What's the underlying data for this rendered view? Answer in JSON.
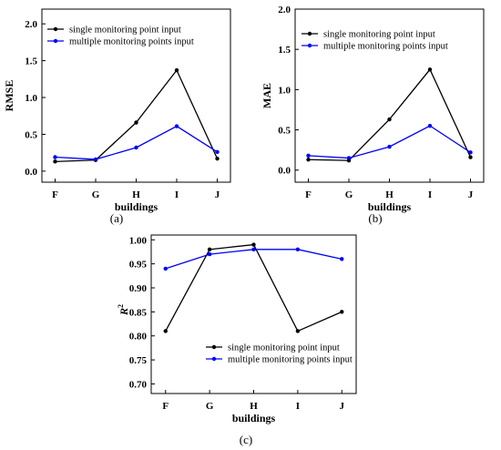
{
  "chart_data": [
    {
      "type": "line",
      "panel_label": "a",
      "categories": [
        "F",
        "G",
        "H",
        "I",
        "J"
      ],
      "xlabel": "buildings",
      "ylabel": "RMSE",
      "ylim": [
        -0.15,
        2.2
      ],
      "yticks": [
        0.0,
        0.5,
        1.0,
        1.5,
        2.0
      ],
      "ytick_labels": [
        "0.0",
        "0.5",
        "1.0",
        "1.5",
        "2.0"
      ],
      "legend_position": "top-left",
      "series": [
        {
          "name": "single monitoring point input",
          "color": "#000000",
          "values": [
            0.13,
            0.15,
            0.66,
            1.37,
            0.17
          ]
        },
        {
          "name": "multiple monitoring points input",
          "color": "#0000ff",
          "values": [
            0.19,
            0.16,
            0.32,
            0.61,
            0.26
          ]
        }
      ]
    },
    {
      "type": "line",
      "panel_label": "b",
      "categories": [
        "F",
        "G",
        "H",
        "I",
        "J"
      ],
      "xlabel": "buildings",
      "ylabel": "MAE",
      "ylim": [
        -0.15,
        2.0
      ],
      "yticks": [
        0.0,
        0.5,
        1.0,
        1.5,
        2.0
      ],
      "ytick_labels": [
        "0.0",
        "0.5",
        "1.0",
        "1.5",
        "2.0"
      ],
      "legend_position": "top-left",
      "series": [
        {
          "name": "single monitoring point input",
          "color": "#000000",
          "values": [
            0.13,
            0.12,
            0.63,
            1.25,
            0.16
          ]
        },
        {
          "name": "multiple monitoring points input",
          "color": "#0000ff",
          "values": [
            0.18,
            0.15,
            0.29,
            0.55,
            0.22
          ]
        }
      ]
    },
    {
      "type": "line",
      "panel_label": "c",
      "categories": [
        "F",
        "G",
        "H",
        "I",
        "J"
      ],
      "xlabel": "buildings",
      "ylabel": "R",
      "ylabel_superscript": "2",
      "ylim": [
        0.68,
        1.01
      ],
      "yticks": [
        0.7,
        0.75,
        0.8,
        0.85,
        0.9,
        0.95,
        1.0
      ],
      "ytick_labels": [
        "0.70",
        "0.75",
        "0.80",
        "0.85",
        "0.90",
        "0.95",
        "1.00"
      ],
      "legend_position": "center-left",
      "series": [
        {
          "name": "single monitoring point input",
          "color": "#000000",
          "values": [
            0.81,
            0.98,
            0.99,
            0.81,
            0.85
          ]
        },
        {
          "name": "multiple monitoring points input",
          "color": "#0000ff",
          "values": [
            0.94,
            0.97,
            0.98,
            0.98,
            0.96
          ]
        }
      ]
    }
  ],
  "captions": [
    "(a)",
    "(b)",
    "(c)"
  ]
}
